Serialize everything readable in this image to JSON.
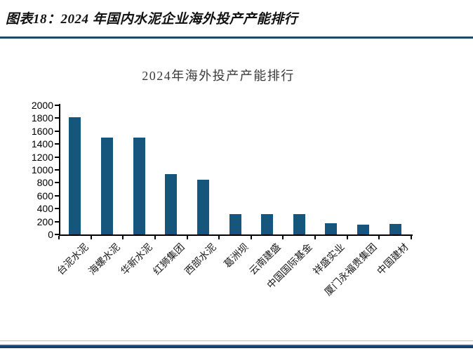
{
  "page": {
    "header_title": "图表18：2024 年国内水泥企业海外投产产能排行"
  },
  "colors": {
    "bar": "#16567C",
    "axis": "#000000",
    "header_rule": "#1C4966",
    "bottom_rule_light": "#A9C7E4",
    "bottom_rule_mid": "#2E5F8A",
    "bottom_rule_dark": "#1E3A5F",
    "title_text": "#3a3a3a"
  },
  "chart_data": {
    "type": "bar",
    "title": "2024年海外投产产能排行",
    "categories": [
      "台泥水泥",
      "海螺水泥",
      "华新水泥",
      "红狮集团",
      "西部水泥",
      "葛洲坝",
      "云南建盛",
      "中国国际基金",
      "祥盛实业",
      "厦门永福贵集团",
      "中国建材"
    ],
    "values": [
      1820,
      1500,
      1500,
      940,
      850,
      320,
      315,
      320,
      170,
      150,
      160
    ],
    "xlabel": "",
    "ylabel": "",
    "ylim": [
      0,
      2000
    ],
    "yticks": [
      0,
      200,
      400,
      600,
      800,
      1000,
      1200,
      1400,
      1600,
      1800,
      2000
    ],
    "grid": false,
    "legend": null,
    "bar_color": "#16567C"
  }
}
